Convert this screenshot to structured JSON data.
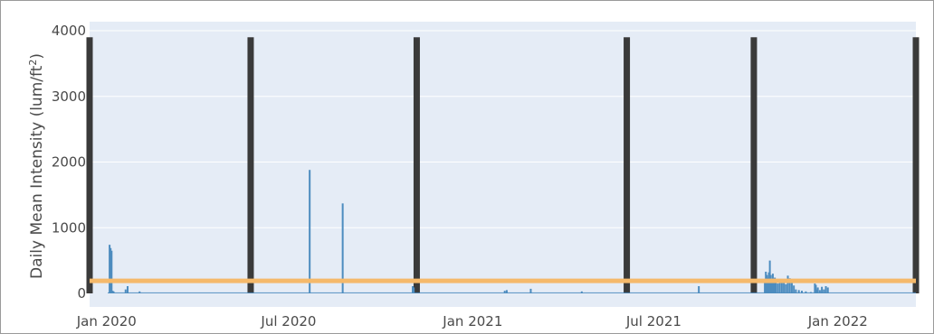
{
  "chart_data": {
    "type": "bar",
    "title": "",
    "xlabel": "",
    "ylabel": "Daily Mean Intensity (lum/ft",
    "ylabel_superscript": "2",
    "ylabel_suffix": ")",
    "ylim": [
      0,
      4000
    ],
    "xlim": [
      "2019-12-15",
      "2022-03-20"
    ],
    "grid": true,
    "legend": "none",
    "y_ticks": [
      {
        "value": 0,
        "label": "0"
      },
      {
        "value": 1000,
        "label": "1000"
      },
      {
        "value": 2000,
        "label": "2000"
      },
      {
        "value": 3000,
        "label": "3000"
      },
      {
        "value": 4000,
        "label": "4000"
      }
    ],
    "x_ticks": [
      {
        "value": "2020-01-01",
        "label": "Jan 2020"
      },
      {
        "value": "2020-07-01",
        "label": "Jul 2020"
      },
      {
        "value": "2021-01-01",
        "label": "Jan 2021"
      },
      {
        "value": "2021-07-01",
        "label": "Jul 2021"
      },
      {
        "value": "2022-01-01",
        "label": "Jan 2022"
      }
    ],
    "threshold": {
      "value": 190,
      "color": "#f5b96b"
    },
    "vertical_markers": {
      "dates": [
        "2019-12-15",
        "2020-05-24",
        "2020-11-06",
        "2021-06-04",
        "2021-10-09",
        "2022-03-20"
      ],
      "value": 3900,
      "color": "#3a3a3a"
    },
    "series_color": "#4d8cbf",
    "baseline_value": 15,
    "series": [
      {
        "x": [
          "2020-01-04",
          "2020-01-05",
          "2020-01-06",
          "2020-01-07",
          "2020-01-08",
          "2020-01-20",
          "2020-01-22",
          "2020-02-03",
          "2020-07-22",
          "2020-08-24",
          "2020-11-02",
          "2020-11-03",
          "2021-02-02",
          "2021-02-04",
          "2021-02-28",
          "2021-04-20",
          "2021-08-15",
          "2021-10-20",
          "2021-10-21",
          "2021-10-22",
          "2021-10-23",
          "2021-10-24",
          "2021-10-25",
          "2021-10-26",
          "2021-10-27",
          "2021-10-28",
          "2021-10-29",
          "2021-10-30",
          "2021-10-31",
          "2021-11-02",
          "2021-11-04",
          "2021-11-06",
          "2021-11-08",
          "2021-11-10",
          "2021-11-12",
          "2021-11-14",
          "2021-11-16",
          "2021-11-18",
          "2021-11-20",
          "2021-11-23",
          "2021-11-26",
          "2021-11-30",
          "2021-12-05",
          "2021-12-09",
          "2021-12-10",
          "2021-12-11",
          "2021-12-12",
          "2021-12-14",
          "2021-12-16",
          "2021-12-18",
          "2021-12-20",
          "2021-12-22"
        ],
        "values": [
          740,
          690,
          650,
          40,
          30,
          60,
          110,
          30,
          1880,
          1370,
          110,
          90,
          40,
          50,
          70,
          30,
          110,
          200,
          330,
          280,
          240,
          320,
          500,
          280,
          220,
          300,
          200,
          240,
          180,
          150,
          220,
          180,
          160,
          140,
          270,
          230,
          200,
          120,
          60,
          50,
          40,
          30,
          20,
          150,
          130,
          60,
          90,
          50,
          100,
          60,
          110,
          90
        ]
      }
    ]
  }
}
